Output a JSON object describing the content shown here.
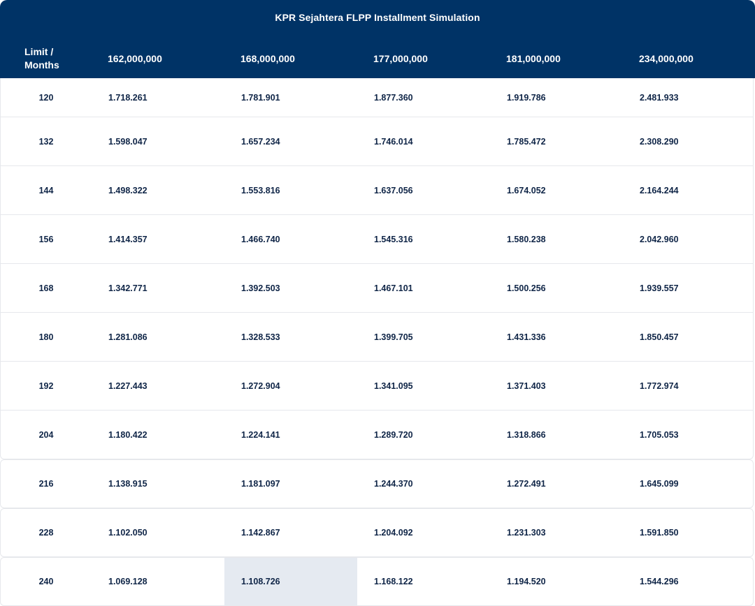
{
  "table": {
    "title": "KPR Sejahtera FLPP Installment Simulation",
    "corner_header": "Limit / Months",
    "columns": [
      "162,000,000",
      "168,000,000",
      "177,000,000",
      "181,000,000",
      "234,000,000"
    ],
    "rows": [
      {
        "months": "120",
        "values": [
          "1.718.261",
          "1.781.901",
          "1.877.360",
          "1.919.786",
          "2.481.933"
        ]
      },
      {
        "months": "132",
        "values": [
          "1.598.047",
          "1.657.234",
          "1.746.014",
          "1.785.472",
          "2.308.290"
        ]
      },
      {
        "months": "144",
        "values": [
          "1.498.322",
          "1.553.816",
          "1.637.056",
          "1.674.052",
          "2.164.244"
        ]
      },
      {
        "months": "156",
        "values": [
          "1.414.357",
          "1.466.740",
          "1.545.316",
          "1.580.238",
          "2.042.960"
        ]
      },
      {
        "months": "168",
        "values": [
          "1.342.771",
          "1.392.503",
          "1.467.101",
          "1.500.256",
          "1.939.557"
        ]
      },
      {
        "months": "180",
        "values": [
          "1.281.086",
          "1.328.533",
          "1.399.705",
          "1.431.336",
          "1.850.457"
        ]
      },
      {
        "months": "192",
        "values": [
          "1.227.443",
          "1.272.904",
          "1.341.095",
          "1.371.403",
          "1.772.974"
        ]
      },
      {
        "months": "204",
        "values": [
          "1.180.422",
          "1.224.141",
          "1.289.720",
          "1.318.866",
          "1.705.053"
        ]
      },
      {
        "months": "216",
        "values": [
          "1.138.915",
          "1.181.097",
          "1.244.370",
          "1.272.491",
          "1.645.099"
        ]
      },
      {
        "months": "228",
        "values": [
          "1.102.050",
          "1.142.867",
          "1.204.092",
          "1.231.303",
          "1.591.850"
        ]
      },
      {
        "months": "240",
        "values": [
          "1.069.128",
          "1.108.726",
          "1.168.122",
          "1.194.520",
          "1.544.296"
        ]
      }
    ],
    "highlight": {
      "row": 10,
      "col": 1
    },
    "colors": {
      "header_bg": "#003366",
      "text": "#0f2547",
      "highlight_bg": "#e5eaf1",
      "border": "#e6e8ec"
    }
  }
}
